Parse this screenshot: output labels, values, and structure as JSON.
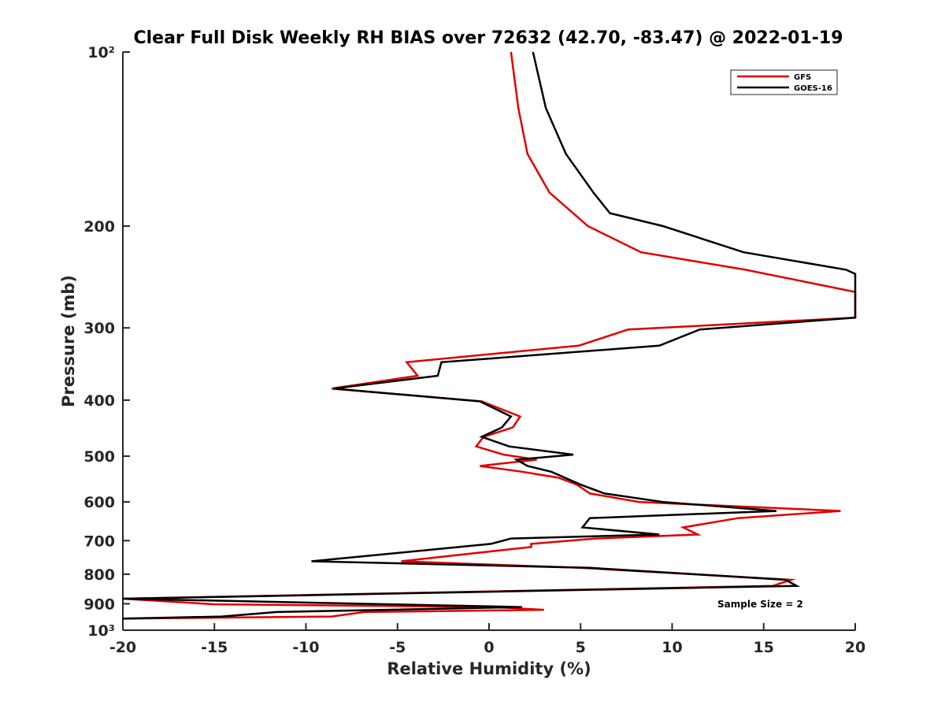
{
  "chart_data": {
    "type": "line",
    "title": "Clear Full Disk Weekly RH BIAS over 72632 (42.70, -83.47) @ 2022-01-19",
    "xlabel": "Relative Humidity (%)",
    "ylabel": "Pressure (mb)",
    "xlim": [
      -20,
      20
    ],
    "ylim": [
      100,
      1000
    ],
    "y_scale": "log",
    "y_reversed": true,
    "grid": false,
    "legend_position": "top-right",
    "x_ticks": [
      -20,
      -15,
      -10,
      -5,
      0,
      5,
      10,
      15,
      20
    ],
    "x_tick_labels": [
      "-20",
      "-15",
      "-10",
      "-5",
      "0",
      "5",
      "10",
      "15",
      "20"
    ],
    "y_ticks": [
      100,
      200,
      300,
      400,
      500,
      600,
      700,
      800,
      900,
      1000
    ],
    "y_tick_labels": [
      "10²",
      "200",
      "300",
      "400",
      "500",
      "600",
      "700",
      "800",
      "900",
      "10³"
    ],
    "annotation": "Sample Size = 2",
    "series": [
      {
        "name": "GFS",
        "color": "#e00000",
        "points": [
          [
            1.2,
            100
          ],
          [
            1.6,
            125
          ],
          [
            2.1,
            150
          ],
          [
            3.3,
            175
          ],
          [
            5.4,
            200
          ],
          [
            8.3,
            222
          ],
          [
            14,
            238
          ],
          [
            20,
            260
          ],
          [
            20,
            288
          ],
          [
            7.6,
            302
          ],
          [
            4.9,
            322
          ],
          [
            -4.5,
            344
          ],
          [
            -3.9,
            363
          ],
          [
            -8.6,
            382
          ],
          [
            -0.4,
            402
          ],
          [
            1.7,
            427
          ],
          [
            1.3,
            446
          ],
          [
            -0.3,
            463
          ],
          [
            -0.7,
            481
          ],
          [
            0.8,
            497
          ],
          [
            2.6,
            507
          ],
          [
            -0.5,
            520
          ],
          [
            1.8,
            532
          ],
          [
            3.8,
            545
          ],
          [
            4.8,
            560
          ],
          [
            5.5,
            580
          ],
          [
            8.2,
            600
          ],
          [
            19.2,
            622
          ],
          [
            13.6,
            640
          ],
          [
            10.6,
            664
          ],
          [
            11.4,
            683
          ],
          [
            5.8,
            694
          ],
          [
            2.3,
            709
          ],
          [
            2.3,
            718
          ],
          [
            -1.2,
            738
          ],
          [
            -4.8,
            760
          ],
          [
            5,
            780
          ],
          [
            16.5,
            818
          ],
          [
            15.5,
            838
          ],
          [
            -20,
            882
          ],
          [
            -15,
            902
          ],
          [
            0.3,
            912
          ],
          [
            3,
            922
          ],
          [
            -6.8,
            930
          ],
          [
            -8.6,
            947
          ],
          [
            -20,
            955
          ]
        ]
      },
      {
        "name": "GOES-16",
        "color": "#000000",
        "points": [
          [
            2.4,
            100
          ],
          [
            3.1,
            125
          ],
          [
            4.2,
            150
          ],
          [
            5.7,
            175
          ],
          [
            6.6,
            190
          ],
          [
            9.5,
            200
          ],
          [
            13.9,
            222
          ],
          [
            19.5,
            238
          ],
          [
            20,
            242
          ],
          [
            20,
            288
          ],
          [
            11.5,
            302
          ],
          [
            9.3,
            322
          ],
          [
            -2.6,
            344
          ],
          [
            -2.8,
            363
          ],
          [
            -8.5,
            382
          ],
          [
            -0.5,
            402
          ],
          [
            1.2,
            427
          ],
          [
            0.7,
            446
          ],
          [
            -0.4,
            463
          ],
          [
            1.1,
            481
          ],
          [
            4.6,
            497
          ],
          [
            1.5,
            507
          ],
          [
            2.1,
            520
          ],
          [
            3.4,
            532
          ],
          [
            5,
            560
          ],
          [
            6.3,
            580
          ],
          [
            9.5,
            600
          ],
          [
            15.7,
            622
          ],
          [
            5.5,
            640
          ],
          [
            5.1,
            664
          ],
          [
            9.3,
            683
          ],
          [
            1.2,
            694
          ],
          [
            0.1,
            709
          ],
          [
            -9.7,
            760
          ],
          [
            5.5,
            780
          ],
          [
            16.2,
            818
          ],
          [
            16.8,
            838
          ],
          [
            -20,
            882
          ],
          [
            -5.4,
            902
          ],
          [
            1.8,
            912
          ],
          [
            -11.6,
            930
          ],
          [
            -14.6,
            947
          ],
          [
            -20,
            955
          ]
        ]
      }
    ]
  }
}
